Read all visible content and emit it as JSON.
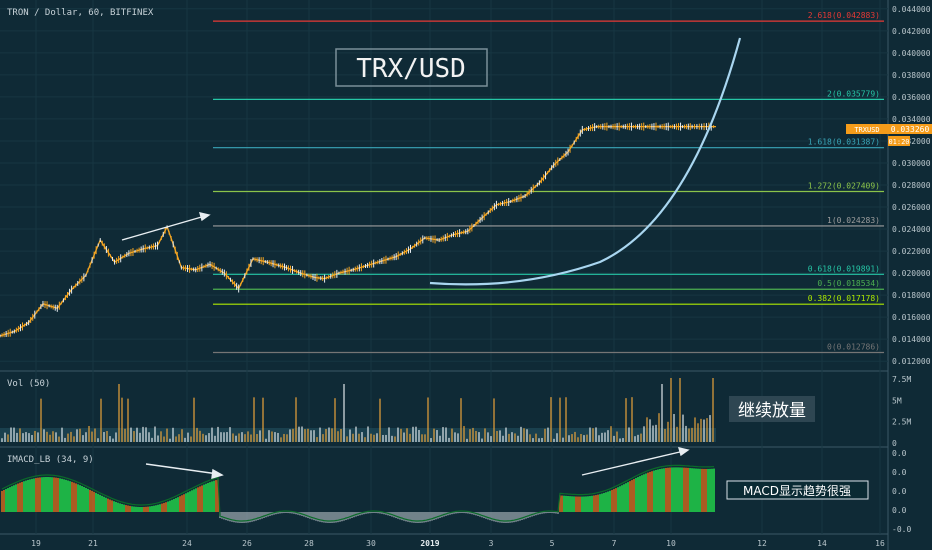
{
  "header": {
    "symbol_text": "TRON / Dollar, 60, BITFINEX"
  },
  "annotations": {
    "title": "TRX/USD",
    "volume_note": "继续放量",
    "macd_note": "MACD显示趋势很强"
  },
  "price_tag": {
    "symbol": "TRXUSD",
    "price": "0.033260",
    "countdown": "01:20"
  },
  "fib_levels": [
    {
      "label": "2.618(0.042883)",
      "value": 0.042883,
      "color": "#e53935"
    },
    {
      "label": "2(0.035779)",
      "value": 0.035779,
      "color": "#26c6a6"
    },
    {
      "label": "1.618(0.031387)",
      "value": 0.031387,
      "color": "#3aa6b8"
    },
    {
      "label": "1.272(0.027409)",
      "value": 0.027409,
      "color": "#8bc34a"
    },
    {
      "label": "1(0.024283)",
      "value": 0.024283,
      "color": "#9e9e9e"
    },
    {
      "label": "0.618(0.019891)",
      "value": 0.019891,
      "color": "#26c6a6"
    },
    {
      "label": "0.5(0.018534)",
      "value": 0.018534,
      "color": "#4caf50"
    },
    {
      "label": "0.382(0.017178)",
      "value": 0.017178,
      "color": "#aeea00"
    },
    {
      "label": "0(0.012786)",
      "value": 0.012786,
      "color": "#757575"
    }
  ],
  "chart_data": [
    {
      "type": "line",
      "x_ticks": [
        "19",
        "21",
        "24",
        "26",
        "28",
        "30",
        "2019",
        "3",
        "5",
        "7",
        "10",
        "12",
        "14",
        "16"
      ],
      "y_ticks": [
        "0.044000",
        "0.042000",
        "0.040000",
        "0.038000",
        "0.036000",
        "0.034000",
        "0.032000",
        "0.030000",
        "0.028000",
        "0.026000",
        "0.024000",
        "0.022000",
        "0.020000",
        "0.018000",
        "0.016000",
        "0.014000",
        "0.012000"
      ],
      "ylim": [
        0.0112,
        0.0448
      ],
      "series": [
        {
          "name": "TRXUSD",
          "x": [
            0,
            3,
            6,
            9,
            12,
            15,
            18,
            21,
            24,
            27,
            30,
            33,
            35,
            38,
            41,
            44,
            47,
            50,
            53,
            56,
            60,
            63,
            66,
            68,
            71,
            74,
            77,
            80,
            83,
            86,
            89,
            92,
            95,
            98,
            101,
            104,
            107,
            110,
            113,
            116,
            119,
            122,
            125,
            128,
            131,
            134,
            137,
            140,
            143,
            145,
            146,
            147,
            148,
            149,
            150
          ],
          "y": [
            0.0143,
            0.0147,
            0.0155,
            0.0172,
            0.0168,
            0.0185,
            0.0198,
            0.023,
            0.021,
            0.0218,
            0.0222,
            0.0225,
            0.0242,
            0.0205,
            0.0203,
            0.0208,
            0.02,
            0.0186,
            0.0213,
            0.021,
            0.0205,
            0.02,
            0.0196,
            0.0195,
            0.02,
            0.0203,
            0.0207,
            0.0211,
            0.0215,
            0.0222,
            0.0232,
            0.023,
            0.0235,
            0.0238,
            0.025,
            0.0262,
            0.0265,
            0.027,
            0.0282,
            0.0298,
            0.031,
            0.033,
            0.0333,
            0.0333,
            0.0333,
            0.0333,
            0.0333,
            0.0333,
            0.0333,
            0.0333,
            0.0333,
            0.0333,
            0.0333,
            0.0333,
            0.0333
          ]
        }
      ]
    },
    {
      "type": "bar",
      "name": "Vol (50)",
      "y_ticks": [
        "7.5M",
        "5M",
        "2.5M",
        "0"
      ],
      "ylim": [
        0,
        8000000
      ]
    },
    {
      "type": "bar",
      "name": "IMACD_LB (34, 9)",
      "y_ticks": [
        "0.0",
        "0.0",
        "0.0",
        "0.0",
        "-0.0"
      ]
    }
  ]
}
